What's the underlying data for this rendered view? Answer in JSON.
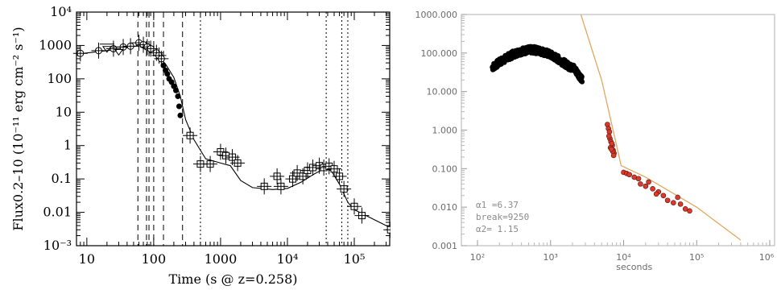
{
  "chart_data": [
    {
      "type": "line",
      "xlabel": "Time (s @ z=0.258)",
      "ylabel": "Flux0.2–10 (10⁻¹¹ erg cm⁻² s⁻¹)",
      "xscale": "log",
      "yscale": "log",
      "xlim": [
        7,
        400000
      ],
      "ylim": [
        0.001,
        10000
      ],
      "x_ticks": [
        {
          "v": 10,
          "label": "10"
        },
        {
          "v": 100,
          "label": "100"
        },
        {
          "v": 1000,
          "label": "1000"
        },
        {
          "v": 10000,
          "label": "10⁴"
        },
        {
          "v": 100000,
          "label": "10⁵"
        }
      ],
      "y_ticks": [
        {
          "v": 0.001,
          "label": "10⁻³"
        },
        {
          "v": 0.01,
          "label": "0.01"
        },
        {
          "v": 0.1,
          "label": "0.1"
        },
        {
          "v": 1,
          "label": "1"
        },
        {
          "v": 10,
          "label": "10"
        },
        {
          "v": 100,
          "label": "100"
        },
        {
          "v": 1000,
          "label": "1000"
        },
        {
          "v": 10000,
          "label": "10⁴"
        }
      ],
      "dashed_lines_x": [
        58,
        78,
        85,
        100,
        140,
        270
      ],
      "dotted_lines_x": [
        500,
        38000,
        65000,
        80000
      ],
      "model_line": [
        [
          7,
          550
        ],
        [
          20,
          700
        ],
        [
          40,
          850
        ],
        [
          60,
          1000
        ],
        [
          80,
          900
        ],
        [
          100,
          650
        ],
        [
          150,
          280
        ],
        [
          200,
          110
        ],
        [
          250,
          30
        ],
        [
          300,
          6
        ],
        [
          400,
          1.5
        ],
        [
          600,
          0.4
        ],
        [
          1000,
          0.3
        ],
        [
          1400,
          0.25
        ],
        [
          2000,
          0.09
        ],
        [
          3000,
          0.055
        ],
        [
          6000,
          0.048
        ],
        [
          10000,
          0.052
        ],
        [
          16000,
          0.08
        ],
        [
          25000,
          0.14
        ],
        [
          35000,
          0.2
        ],
        [
          45000,
          0.18
        ],
        [
          60000,
          0.07
        ],
        [
          80000,
          0.02
        ],
        [
          100000,
          0.012
        ],
        [
          150000,
          0.008
        ],
        [
          400000,
          0.003
        ]
      ],
      "series": [
        {
          "marker": "circle-plus",
          "points": [
            [
              8,
              580,
              1,
              1
            ],
            [
              15,
              700,
              1,
              1
            ],
            [
              25,
              800,
              1,
              1
            ],
            [
              35,
              900,
              1,
              1
            ],
            [
              45,
              950,
              1,
              1
            ],
            [
              60,
              1200,
              1,
              1
            ],
            [
              70,
              1050,
              1,
              1
            ],
            [
              80,
              900,
              1,
              1
            ],
            [
              90,
              800,
              1,
              1
            ],
            [
              110,
              600,
              1,
              1
            ],
            [
              120,
              500,
              1,
              1
            ],
            [
              130,
              400,
              1,
              1
            ]
          ]
        },
        {
          "marker": "filled-circle",
          "points": [
            [
              140,
              250
            ],
            [
              150,
              180
            ],
            [
              160,
              140
            ],
            [
              170,
              100
            ],
            [
              185,
              80
            ],
            [
              200,
              60
            ],
            [
              215,
              45
            ],
            [
              230,
              30
            ],
            [
              240,
              15
            ],
            [
              250,
              8
            ]
          ]
        },
        {
          "marker": "square-plus",
          "points": [
            [
              350,
              2
            ],
            [
              500,
              0.28
            ],
            [
              700,
              0.28
            ],
            [
              1000,
              0.65
            ],
            [
              1200,
              0.5
            ],
            [
              1500,
              0.45
            ],
            [
              1800,
              0.3
            ],
            [
              4500,
              0.06
            ],
            [
              7000,
              0.12
            ],
            [
              8000,
              0.06
            ],
            [
              12000,
              0.1
            ],
            [
              14000,
              0.15
            ],
            [
              17000,
              0.12
            ],
            [
              20000,
              0.18
            ],
            [
              24000,
              0.22
            ],
            [
              30000,
              0.25
            ],
            [
              35000,
              0.22
            ],
            [
              42000,
              0.24
            ],
            [
              50000,
              0.2
            ],
            [
              60000,
              0.12
            ],
            [
              70000,
              0.05
            ],
            [
              100000,
              0.015
            ],
            [
              130000,
              0.008
            ],
            [
              350000,
              0.003
            ]
          ]
        }
      ],
      "upper_limits": [
        [
          20,
          1100
        ],
        [
          30,
          900
        ]
      ]
    },
    {
      "type": "scatter",
      "xlabel": "seconds",
      "xscale": "log",
      "yscale": "log",
      "xlim": [
        100,
        1000000
      ],
      "ylim": [
        0.001,
        1000
      ],
      "x_ticks": [
        {
          "v": 100,
          "label": "10²"
        },
        {
          "v": 1000,
          "label": "10³"
        },
        {
          "v": 10000,
          "label": "10⁴"
        },
        {
          "v": 100000,
          "label": "10⁵"
        },
        {
          "v": 1000000,
          "label": "10⁶"
        }
      ],
      "y_ticks": [
        {
          "v": 0.001,
          "label": "0.001"
        },
        {
          "v": 0.01,
          "label": "0.010"
        },
        {
          "v": 0.1,
          "label": "0.100"
        },
        {
          "v": 1,
          "label": "1.000"
        },
        {
          "v": 10,
          "label": "10.000"
        },
        {
          "v": 100,
          "label": "100.000"
        },
        {
          "v": 1000,
          "label": "1000.000"
        }
      ],
      "fit_line": [
        [
          2600,
          1000
        ],
        [
          5000,
          20
        ],
        [
          9250,
          0.12
        ],
        [
          20000,
          0.06
        ],
        [
          100000,
          0.01
        ],
        [
          400000,
          0.0014
        ]
      ],
      "fit_color": "#e0a860",
      "early_points_range": [
        160,
        2700
      ],
      "early_points_color": "#000000",
      "late_points_color": "#d93a2a",
      "late_points": [
        [
          6000,
          1.4
        ],
        [
          6200,
          1.1
        ],
        [
          6400,
          0.9
        ],
        [
          6500,
          0.6
        ],
        [
          6700,
          0.5
        ],
        [
          7000,
          0.4
        ],
        [
          7200,
          0.3
        ],
        [
          7400,
          0.25
        ],
        [
          6600,
          0.35
        ],
        [
          6900,
          0.45
        ],
        [
          7100,
          0.28
        ],
        [
          7300,
          0.22
        ],
        [
          6300,
          0.7
        ],
        [
          6800,
          0.32
        ],
        [
          10000,
          0.08
        ],
        [
          11000,
          0.075
        ],
        [
          12000,
          0.07
        ],
        [
          14000,
          0.06
        ],
        [
          16000,
          0.055
        ],
        [
          17000,
          0.04
        ],
        [
          20000,
          0.035
        ],
        [
          25000,
          0.03
        ],
        [
          30000,
          0.025
        ],
        [
          35000,
          0.02
        ],
        [
          40000,
          0.015
        ],
        [
          48000,
          0.013
        ],
        [
          55000,
          0.018
        ],
        [
          60000,
          0.012
        ],
        [
          70000,
          0.009
        ],
        [
          80000,
          0.008
        ],
        [
          22000,
          0.045
        ],
        [
          28000,
          0.022
        ]
      ],
      "annotations": [
        "α1 =6.37",
        "break=9250",
        "α2= 1.15"
      ]
    }
  ]
}
